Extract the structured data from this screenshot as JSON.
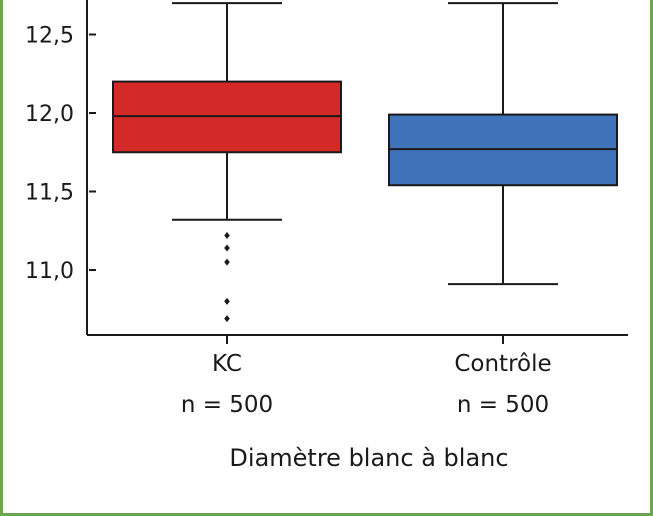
{
  "chart_data": {
    "type": "box",
    "xlabel": "Diamètre blanc à blanc",
    "ylabel": "",
    "ylim": [
      10.6,
      12.7
    ],
    "yticks": [
      {
        "value": 11.0,
        "label": "11,0"
      },
      {
        "value": 11.5,
        "label": "11,5"
      },
      {
        "value": 12.0,
        "label": "12,0"
      },
      {
        "value": 12.5,
        "label": "12,5"
      }
    ],
    "categories": [
      {
        "name": "KC",
        "n_label": "n = 500",
        "color": "#d32a27",
        "whisker_low": 11.32,
        "q1": 11.75,
        "median": 11.98,
        "q3": 12.2,
        "whisker_high": 12.7,
        "outliers": [
          11.22,
          11.14,
          11.05,
          10.8,
          10.69
        ]
      },
      {
        "name": "Contrôle",
        "n_label": "n = 500",
        "color": "#3f72b8",
        "whisker_low": 10.91,
        "q1": 11.54,
        "median": 11.77,
        "q3": 11.99,
        "whisker_high": 12.7,
        "outliers": []
      }
    ]
  }
}
